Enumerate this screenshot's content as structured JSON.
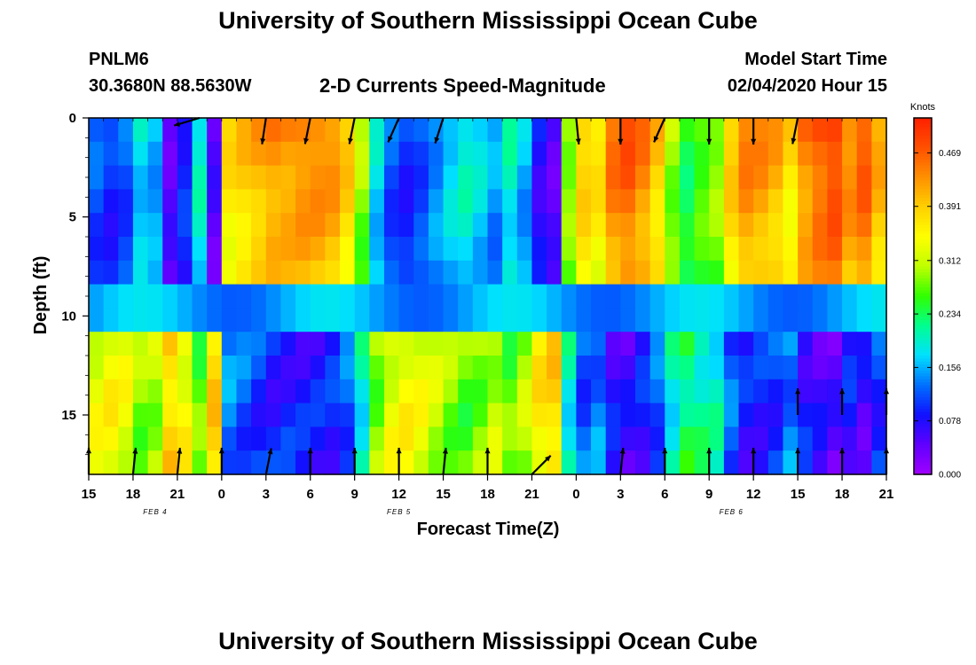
{
  "header": {
    "title": "University of Southern Mississippi Ocean Cube",
    "station": "PNLM6",
    "coords": "30.3680N 88.5630W",
    "subtitle": "2-D Currents Speed-Magnitude",
    "model_start_label": "Model Start Time",
    "model_start_value": "02/04/2020 Hour 15"
  },
  "footer": {
    "title": "University of Southern Mississippi Ocean Cube"
  },
  "chart_data": {
    "type": "heatmap",
    "title": "2-D Currents Speed-Magnitude",
    "xlabel": "Forecast Time(Z)",
    "ylabel": "Depth (ft)",
    "x_tick_labels": [
      "15",
      "18",
      "21",
      "0",
      "3",
      "6",
      "9",
      "12",
      "15",
      "18",
      "21",
      "0",
      "3",
      "6",
      "9",
      "12",
      "15",
      "18",
      "21"
    ],
    "date_labels": [
      {
        "text": "FEB 4",
        "at_tick": 1.5
      },
      {
        "text": "FEB 5",
        "at_tick": 7
      },
      {
        "text": "FEB 6",
        "at_tick": 14.5
      }
    ],
    "y_tick_labels": [
      "0",
      "5",
      "10",
      "15"
    ],
    "y_ticks": [
      0,
      5,
      10,
      15
    ],
    "ylim": [
      0,
      18
    ],
    "y_inverted": true,
    "colorbar": {
      "label": "Knots",
      "ticks": [
        0.0,
        0.078,
        0.156,
        0.234,
        0.312,
        0.391,
        0.469
      ],
      "range": [
        0,
        0.52
      ],
      "colors": [
        "#a000ff",
        "#6000ff",
        "#1010ff",
        "#0070ff",
        "#00e0ff",
        "#00ff90",
        "#30ff00",
        "#c0ff00",
        "#ffff00",
        "#ffd000",
        "#ff9000",
        "#ff5000",
        "#ff2000"
      ]
    },
    "hours": 54,
    "depth_bins": [
      0.0,
      1.2,
      2.4,
      3.6,
      4.8,
      6.0,
      7.2,
      8.4,
      9.6,
      10.8,
      12.0,
      13.2,
      14.4,
      15.6,
      16.8
    ],
    "surface_row_speed": [
      0.12,
      0.1,
      0.12,
      0.18,
      0.16,
      0.05,
      0.1,
      0.2,
      0.05,
      0.38,
      0.4,
      0.42,
      0.44,
      0.44,
      0.45,
      0.45,
      0.44,
      0.4,
      0.3,
      0.18,
      0.12,
      0.1,
      0.12,
      0.15,
      0.18,
      0.2,
      0.18,
      0.15,
      0.2,
      0.16,
      0.08,
      0.05,
      0.3,
      0.4,
      0.38,
      0.46,
      0.48,
      0.45,
      0.4,
      0.3,
      0.25,
      0.28,
      0.3,
      0.4,
      0.45,
      0.44,
      0.42,
      0.38,
      0.45,
      0.48,
      0.5,
      0.45,
      0.48,
      0.42
    ],
    "vectors": [
      {
        "hour": 7.5,
        "depth": 0,
        "u": -1.0,
        "v": -0.3
      },
      {
        "hour": 12,
        "depth": 0,
        "u": -0.15,
        "v": -1.0
      },
      {
        "hour": 15,
        "depth": 0,
        "u": -0.2,
        "v": -1.0
      },
      {
        "hour": 18,
        "depth": 0,
        "u": -0.2,
        "v": -1.0
      },
      {
        "hour": 21,
        "depth": 0,
        "u": -0.4,
        "v": -0.9
      },
      {
        "hour": 24,
        "depth": 0,
        "u": -0.3,
        "v": -0.95
      },
      {
        "hour": 33,
        "depth": 0,
        "u": 0.1,
        "v": -1.0
      },
      {
        "hour": 36,
        "depth": 0,
        "u": 0.0,
        "v": -1.0
      },
      {
        "hour": 39,
        "depth": 0,
        "u": -0.4,
        "v": -0.9
      },
      {
        "hour": 42,
        "depth": 0,
        "u": 0.0,
        "v": -1.0
      },
      {
        "hour": 45,
        "depth": 0,
        "u": 0.0,
        "v": -1.0
      },
      {
        "hour": 48,
        "depth": 0,
        "u": -0.2,
        "v": -1.0
      },
      {
        "hour": 48,
        "depth": 15,
        "u": 0.0,
        "v": 1.0
      },
      {
        "hour": 51,
        "depth": 15,
        "u": 0.0,
        "v": 1.0
      },
      {
        "hour": 54,
        "depth": 15,
        "u": 0.0,
        "v": 1.0
      },
      {
        "hour": 0,
        "depth": 18,
        "u": 0.0,
        "v": 1.0
      },
      {
        "hour": 3,
        "depth": 18,
        "u": 0.1,
        "v": 1.0
      },
      {
        "hour": 6,
        "depth": 18,
        "u": 0.1,
        "v": 1.0
      },
      {
        "hour": 9,
        "depth": 18,
        "u": 0.0,
        "v": 1.0
      },
      {
        "hour": 12,
        "depth": 18,
        "u": 0.2,
        "v": 1.0
      },
      {
        "hour": 15,
        "depth": 18,
        "u": 0.0,
        "v": 1.0
      },
      {
        "hour": 18,
        "depth": 18,
        "u": 0.0,
        "v": 1.0
      },
      {
        "hour": 21,
        "depth": 18,
        "u": 0.0,
        "v": 1.0
      },
      {
        "hour": 24,
        "depth": 18,
        "u": 0.1,
        "v": 1.0
      },
      {
        "hour": 27,
        "depth": 18,
        "u": 0.0,
        "v": 1.0
      },
      {
        "hour": 30,
        "depth": 18,
        "u": 0.8,
        "v": 0.8
      },
      {
        "hour": 36,
        "depth": 18,
        "u": 0.1,
        "v": 1.0
      },
      {
        "hour": 39,
        "depth": 18,
        "u": 0.0,
        "v": 1.0
      },
      {
        "hour": 42,
        "depth": 18,
        "u": 0.0,
        "v": 1.0
      },
      {
        "hour": 45,
        "depth": 18,
        "u": 0.0,
        "v": 1.0
      },
      {
        "hour": 48,
        "depth": 18,
        "u": 0.0,
        "v": 1.0
      },
      {
        "hour": 51,
        "depth": 18,
        "u": 0.0,
        "v": 1.0
      },
      {
        "hour": 54,
        "depth": 18,
        "u": 0.0,
        "v": 1.0
      }
    ]
  }
}
